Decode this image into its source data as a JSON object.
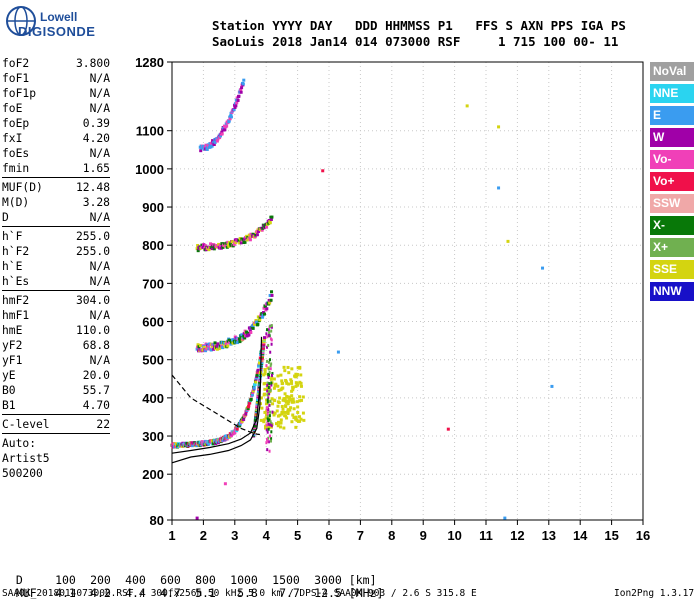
{
  "logo": {
    "brand_top": "Lowell",
    "brand_bottom": "DIGISONDE"
  },
  "header": {
    "line1_labels": "Station YYYY DAY   DDD HHMMSS P1   FFS S AXN PPS IGA PS",
    "line2_values": "SaoLuis 2018 Jan14 014 073000 RSF     1 715 100 00- 11"
  },
  "params": [
    {
      "label": "foF2",
      "value": "3.800"
    },
    {
      "label": "foF1",
      "value": "N/A"
    },
    {
      "label": "foF1p",
      "value": "N/A"
    },
    {
      "label": "foE",
      "value": "N/A"
    },
    {
      "label": "foEp",
      "value": "0.39"
    },
    {
      "label": "fxI",
      "value": "4.20"
    },
    {
      "label": "foEs",
      "value": "N/A"
    },
    {
      "label": "fmin",
      "value": "1.65"
    },
    {
      "sep": true
    },
    {
      "label": "MUF(D)",
      "value": "12.48"
    },
    {
      "label": "M(D)",
      "value": "3.28"
    },
    {
      "label": "D",
      "value": "N/A"
    },
    {
      "sep": true
    },
    {
      "label": "h`F",
      "value": "255.0"
    },
    {
      "label": "h`F2",
      "value": "255.0"
    },
    {
      "label": "h`E",
      "value": "N/A"
    },
    {
      "label": "h`Es",
      "value": "N/A"
    },
    {
      "sep": true
    },
    {
      "label": "hmF2",
      "value": "304.0"
    },
    {
      "label": "hmF1",
      "value": "N/A"
    },
    {
      "label": "hmE",
      "value": "110.0"
    },
    {
      "label": "yF2",
      "value": "68.8"
    },
    {
      "label": "yF1",
      "value": "N/A"
    },
    {
      "label": "yE",
      "value": "20.0"
    },
    {
      "label": "B0",
      "value": "55.7"
    },
    {
      "label": "B1",
      "value": "4.70"
    },
    {
      "sep": true
    },
    {
      "label": "C-level",
      "value": "22"
    },
    {
      "sep": true
    }
  ],
  "autoscale": {
    "line1": "Auto:",
    "line2": "Artist5",
    "line3": "500200"
  },
  "legend": [
    {
      "label": "NoVal",
      "color": "#a0a0a0"
    },
    {
      "label": "NNE",
      "color": "#2ad4f0"
    },
    {
      "label": "E",
      "color": "#3a9cf0"
    },
    {
      "label": "W",
      "color": "#a000a8"
    },
    {
      "label": "Vo-",
      "color": "#f040b8"
    },
    {
      "label": "Vo+",
      "color": "#f0104a"
    },
    {
      "label": "SSW",
      "color": "#f0a8a8"
    },
    {
      "label": "X-",
      "color": "#087808"
    },
    {
      "label": "X+",
      "color": "#70b050"
    },
    {
      "label": "SSE",
      "color": "#d4d410"
    },
    {
      "label": "NNW",
      "color": "#1810c8"
    }
  ],
  "footer": {
    "d_label": "D",
    "d_values": [
      "100",
      "200",
      "400",
      "600",
      "800",
      "1000",
      "1500",
      "3000"
    ],
    "d_unit": "[km]",
    "muf_label": "MUF",
    "muf_values": [
      "4.1",
      "4.2",
      "4.4",
      "4.7",
      "5.1",
      "5.8",
      "7.7",
      "12.5"
    ],
    "muf_unit": "[MHz]",
    "filename_line": "SAA0K_2018014073000.RSF / 300fx256h 50 kHz 5.0 km / DPS-4 SAA0K 903 / 2.6 S 315.8 E",
    "version": "Ion2Png 1.3.17"
  },
  "chart_data": {
    "type": "scatter",
    "title": "",
    "xlabel": "",
    "ylabel": "",
    "xlim": [
      1,
      16
    ],
    "ylim": [
      80,
      1280
    ],
    "x_ticks": [
      "1",
      "2",
      "3",
      "4",
      "5",
      "6",
      "7",
      "8",
      "9",
      "10",
      "11",
      "12",
      "13",
      "14",
      "15",
      "16"
    ],
    "y_ticks": [
      "80",
      "200",
      "300",
      "400",
      "500",
      "600",
      "700",
      "800",
      "900",
      "1000",
      "1100",
      "1280"
    ],
    "grid": true,
    "echo_clusters": [
      {
        "name": "F-trace",
        "x": [
          1.0,
          4.1
        ],
        "y": [
          255,
          560
        ],
        "color_mix": [
          "Vo-",
          "W",
          "X-",
          "NNE",
          "E",
          "SSE",
          "Vo+"
        ]
      },
      {
        "name": "F-trace 2nd hop",
        "x": [
          1.8,
          4.3
        ],
        "y": [
          500,
          650
        ],
        "color_mix": [
          "W",
          "Vo-",
          "X-",
          "SSE",
          "E"
        ]
      },
      {
        "name": "3rd hop",
        "x": [
          1.8,
          4.3
        ],
        "y": [
          740,
          860
        ],
        "color_mix": [
          "W",
          "Vo-",
          "X-",
          "SSE"
        ]
      },
      {
        "name": "4th hop",
        "x": [
          1.9,
          3.3
        ],
        "y": [
          1040,
          1250
        ],
        "color_mix": [
          "W",
          "Vo-",
          "E"
        ]
      },
      {
        "name": "X-spread",
        "x": [
          3.8,
          5.2
        ],
        "y": [
          320,
          480
        ],
        "color_mix": [
          "SSE"
        ]
      }
    ],
    "scattered_points": [
      {
        "x": 10.4,
        "y": 1165,
        "color": "SSE"
      },
      {
        "x": 11.4,
        "y": 1110,
        "color": "SSE"
      },
      {
        "x": 11.4,
        "y": 950,
        "color": "E"
      },
      {
        "x": 11.7,
        "y": 810,
        "color": "SSE"
      },
      {
        "x": 12.8,
        "y": 740,
        "color": "E"
      },
      {
        "x": 6.3,
        "y": 520,
        "color": "E"
      },
      {
        "x": 5.8,
        "y": 995,
        "color": "Vo+"
      },
      {
        "x": 13.1,
        "y": 430,
        "color": "E"
      },
      {
        "x": 9.8,
        "y": 318,
        "color": "Vo+"
      },
      {
        "x": 11.6,
        "y": 85,
        "color": "E"
      },
      {
        "x": 1.8,
        "y": 85,
        "color": "W"
      },
      {
        "x": 2.7,
        "y": 175,
        "color": "Vo-"
      }
    ],
    "profile_lines": [
      {
        "name": "profile-solid",
        "x": [
          1.0,
          1.6,
          2.2,
          2.8,
          3.2,
          3.5,
          3.7,
          3.8,
          3.85
        ],
        "y": [
          230,
          245,
          252,
          262,
          275,
          290,
          320,
          380,
          560
        ]
      },
      {
        "name": "profile-solid-2",
        "x": [
          1.0,
          1.6,
          2.2,
          2.8,
          3.2,
          3.5,
          3.7,
          3.8
        ],
        "y": [
          255,
          262,
          270,
          280,
          292,
          308,
          345,
          430
        ]
      },
      {
        "name": "profile-dashed",
        "x": [
          1.0,
          1.3,
          1.6,
          2.0,
          2.4,
          2.8,
          3.2,
          3.5,
          3.7,
          3.8
        ],
        "y": [
          460,
          430,
          400,
          380,
          360,
          340,
          320,
          310,
          305,
          304
        ]
      }
    ]
  }
}
